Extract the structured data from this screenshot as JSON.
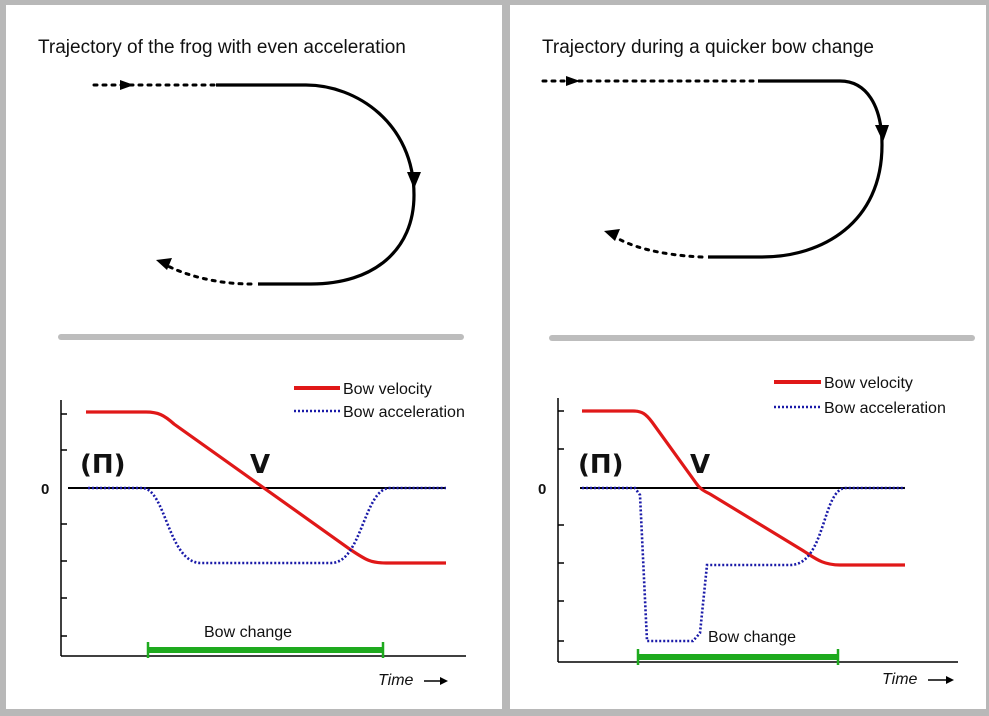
{
  "colors": {
    "velocity": "#e01818",
    "acceleration": "#1a1aa8",
    "bow_change_bar": "#1eaa1e",
    "trajectory": "#000000",
    "divider": "#bdbdbd",
    "background_frame": "#b8b8b8"
  },
  "panels": [
    {
      "id": "even",
      "title": "Trajectory of the frog with even acceleration",
      "legend": {
        "velocity_label": "Bow velocity",
        "acceleration_label": "Bow acceleration"
      },
      "zero_label": "0",
      "down_bow_symbol": "(Π)",
      "up_bow_symbol": "V",
      "bow_change_label": "Bow change",
      "time_label": "Time"
    },
    {
      "id": "quick",
      "title": "Trajectory during a quicker bow change",
      "legend": {
        "velocity_label": "Bow velocity",
        "acceleration_label": "Bow acceleration"
      },
      "zero_label": "0",
      "down_bow_symbol": "(Π)",
      "up_bow_symbol": "V",
      "bow_change_label": "Bow change",
      "time_label": "Time"
    }
  ]
}
